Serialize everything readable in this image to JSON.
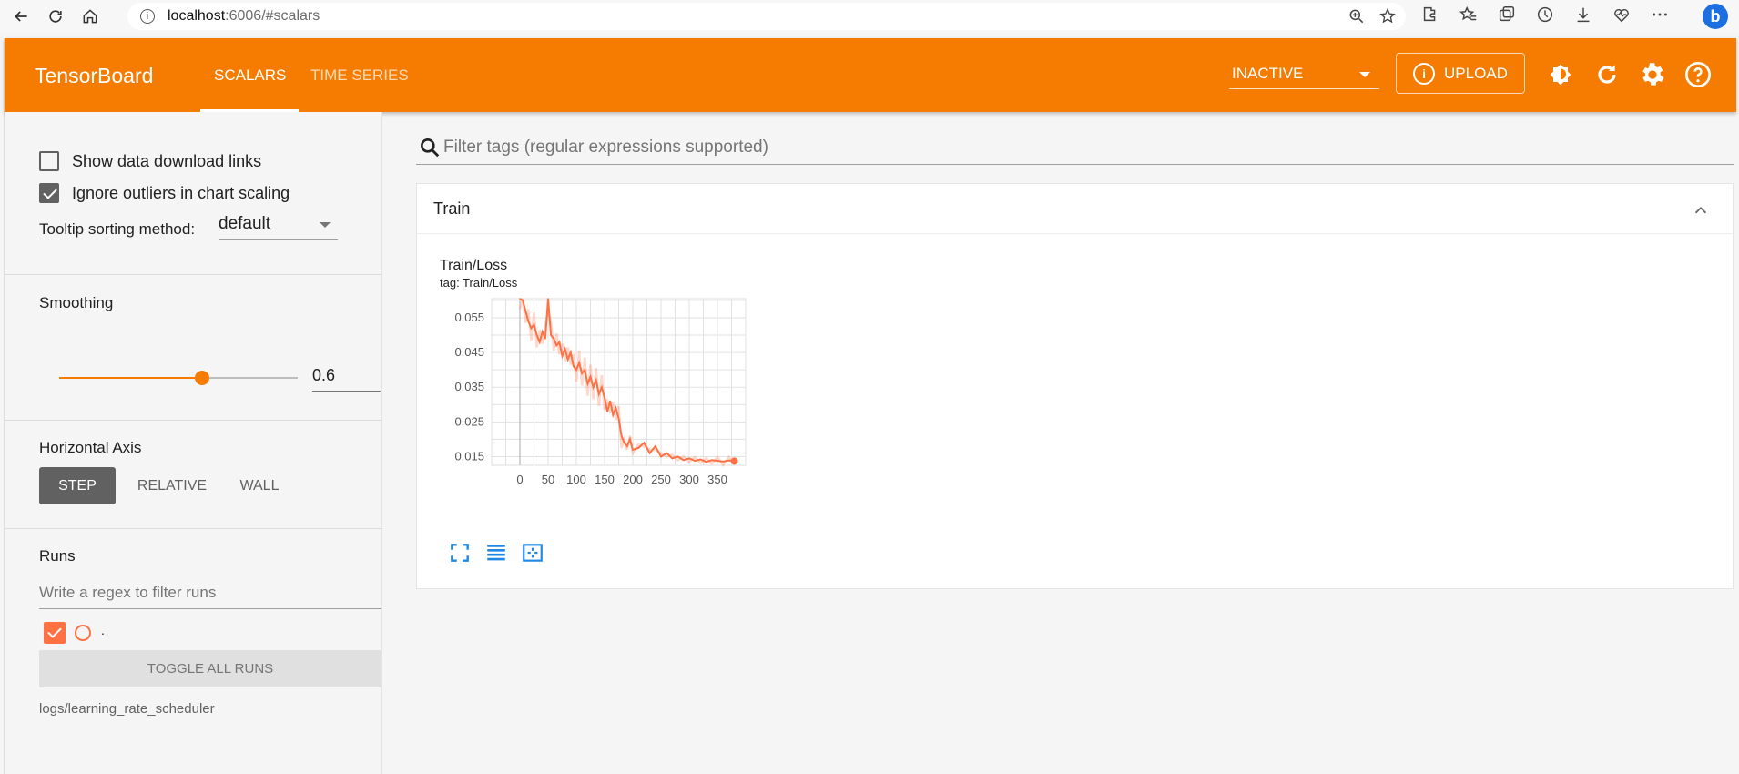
{
  "browser": {
    "url_host": "localhost",
    "url_rest": ":6006/#scalars",
    "icons": [
      "back-icon",
      "refresh-icon",
      "home-icon",
      "info-icon",
      "zoom-icon",
      "favorite-add-icon",
      "extensions-icon",
      "favorites-icon",
      "collections-icon",
      "history-icon",
      "download-icon",
      "performance-icon",
      "more-icon",
      "bing-icon"
    ]
  },
  "header": {
    "brand": "TensorBoard",
    "tabs": [
      {
        "label": "SCALARS"
      },
      {
        "label": "TIME SERIES"
      }
    ],
    "run_select": "INACTIVE",
    "upload_label": "UPLOAD",
    "accent_color": "#f57c00"
  },
  "sidebar": {
    "show_download_links": "Show data download links",
    "ignore_outliers": "Ignore outliers in chart scaling",
    "tooltip_label": "Tooltip sorting method:",
    "tooltip_value": "default",
    "smoothing_label": "Smoothing",
    "smoothing_value": "0.6",
    "smoothing_fraction": 0.6,
    "horizontal_axis_label": "Horizontal Axis",
    "axis_buttons": [
      {
        "label": "STEP"
      },
      {
        "label": "RELATIVE"
      },
      {
        "label": "WALL"
      }
    ],
    "runs_label": "Runs",
    "runs_filter_placeholder": "Write a regex to filter runs",
    "run_name": ".",
    "run_color": "#ff7043",
    "toggle_all": "TOGGLE ALL RUNS",
    "logdir": "logs/learning_rate_scheduler"
  },
  "main": {
    "filter_placeholder": "Filter tags (regular expressions supported)",
    "group_title": "Train",
    "chart_title": "Train/Loss",
    "chart_tag": "tag: Train/Loss"
  },
  "chart_data": {
    "type": "line",
    "title": "Train/Loss",
    "xlabel": "",
    "ylabel": "",
    "xlim": [
      -50,
      400
    ],
    "ylim": [
      0.0125,
      0.0605
    ],
    "xticks": [
      0,
      50,
      100,
      150,
      200,
      250,
      300,
      350
    ],
    "yticks": [
      0.015,
      0.025,
      0.035,
      0.045,
      0.055
    ],
    "ytick_labels": [
      "0.015",
      "0.025",
      "0.035",
      "0.045",
      "0.055"
    ],
    "series": [
      {
        "name": ".",
        "x": [
          0,
          5,
          10,
          15,
          20,
          25,
          30,
          35,
          40,
          45,
          50,
          55,
          60,
          65,
          70,
          75,
          80,
          85,
          90,
          95,
          100,
          105,
          110,
          115,
          120,
          125,
          130,
          135,
          140,
          145,
          150,
          155,
          160,
          165,
          170,
          175,
          180,
          185,
          190,
          195,
          200,
          210,
          220,
          230,
          240,
          250,
          260,
          270,
          280,
          290,
          300,
          310,
          320,
          330,
          340,
          350,
          360,
          370,
          380
        ],
        "values": [
          0.061,
          0.06,
          0.057,
          0.054,
          0.052,
          0.053,
          0.05,
          0.048,
          0.051,
          0.049,
          0.061,
          0.05,
          0.049,
          0.047,
          0.048,
          0.044,
          0.046,
          0.043,
          0.045,
          0.041,
          0.04,
          0.042,
          0.039,
          0.04,
          0.036,
          0.038,
          0.035,
          0.037,
          0.033,
          0.035,
          0.032,
          0.028,
          0.031,
          0.027,
          0.029,
          0.026,
          0.021,
          0.019,
          0.018,
          0.02,
          0.017,
          0.0175,
          0.019,
          0.016,
          0.018,
          0.015,
          0.016,
          0.0145,
          0.015,
          0.014,
          0.0145,
          0.0138,
          0.0142,
          0.0135,
          0.014,
          0.0138,
          0.0136,
          0.0139,
          0.0137
        ]
      }
    ]
  }
}
